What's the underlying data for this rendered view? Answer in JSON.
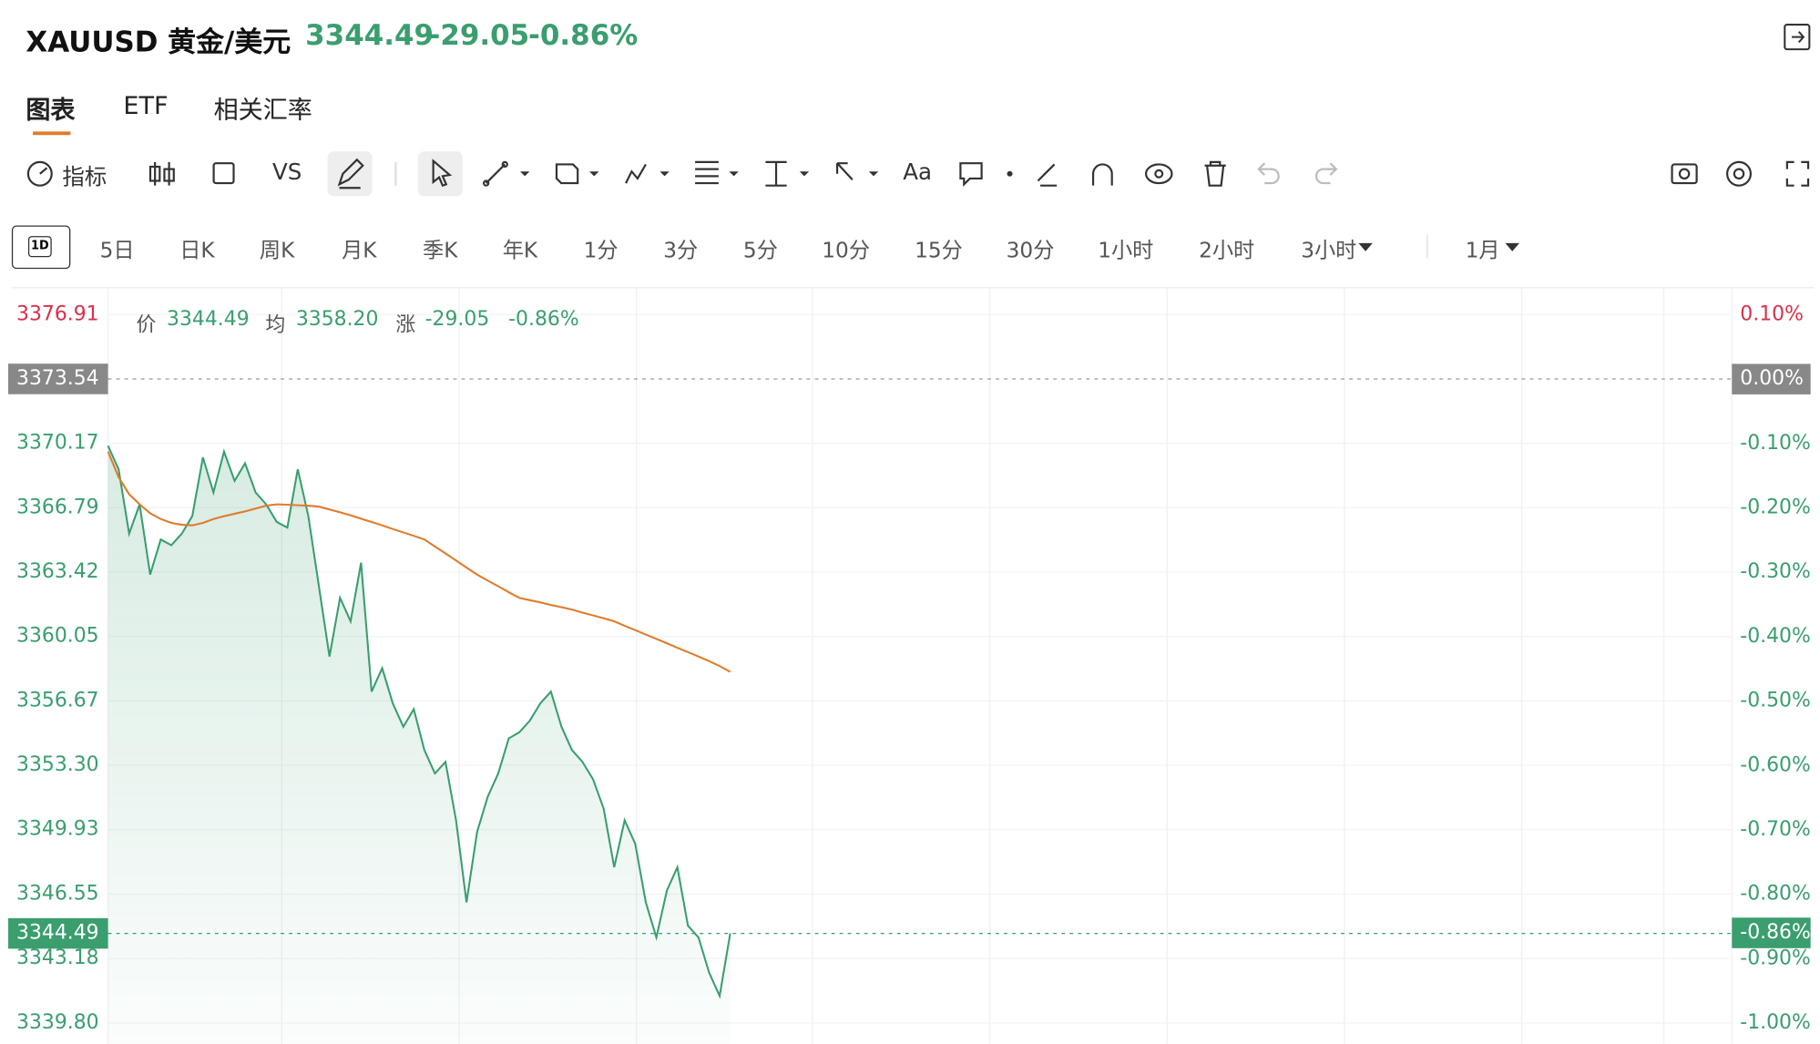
{
  "header": {
    "symbol": "XAUUSD 黄金/美元",
    "price": "3344.49",
    "change": "-29.05",
    "change_pct": "-0.86%"
  },
  "tabs": [
    "图表",
    "ETF",
    "相关汇率"
  ],
  "toolbar": {
    "indicator": "指标",
    "compare": "VS",
    "text": "Aa"
  },
  "periods": [
    "5日",
    "日K",
    "周K",
    "月K",
    "季K",
    "年K",
    "1分",
    "3分",
    "5分",
    "10分",
    "15分",
    "30分",
    "1小时",
    "2小时",
    "3小时",
    "1月"
  ],
  "period_icon": "1D",
  "info": {
    "price_label": "价",
    "price": "3344.49",
    "avg_label": "均",
    "avg": "3358.20",
    "change_label": "涨",
    "change": "-29.05",
    "change_pct": "-0.86%"
  },
  "chart_data": {
    "type": "line",
    "xlim": [
      0,
      154
    ],
    "ylim": [
      3338.21,
      3378.32
    ],
    "yticks": [
      3376.91,
      3373.54,
      3370.17,
      3366.79,
      3363.42,
      3360.05,
      3356.67,
      {
        "value": 3353.3,
        "label": "3353.30"
      },
      3349.93,
      3346.55,
      3343.18,
      {
        "value": 3339.8,
        "label": "3339.80"
      }
    ],
    "y2lim": [
      -1.047,
      0.142
    ],
    "y2ticks": [
      {
        "value": 0.1,
        "label": "0.10%"
      },
      {
        "value": 0,
        "label": "0.00%"
      },
      {
        "value": -0.1,
        "label": "-0.10%"
      },
      {
        "value": -0.2,
        "label": "-0.20%"
      },
      {
        "value": -0.3,
        "label": "-0.30%"
      },
      {
        "value": -0.4,
        "label": "-0.40%"
      },
      {
        "value": -0.5,
        "label": "-0.50%"
      },
      {
        "value": -0.6,
        "label": "-0.60%"
      },
      {
        "value": -0.7,
        "label": "-0.70%"
      },
      {
        "value": -0.8,
        "label": "-0.80%"
      },
      {
        "value": -0.9,
        "label": "-0.90%"
      },
      {
        "value": -1,
        "label": "-1.00%"
      }
    ],
    "current_price": 3344.49,
    "current_pct": {
      "value": -0.86,
      "label": "-0.86%"
    },
    "grid": true,
    "series": [
      {
        "name": "价",
        "color": "#3a9e6e",
        "values": [
          3370.04,
          3368.81,
          3365.44,
          3366.97,
          3363.29,
          3365.13,
          3364.83,
          3365.44,
          3366.36,
          3369.43,
          3367.59,
          3369.73,
          3368.2,
          3369.12,
          3367.59,
          3366.97,
          3366.05,
          3365.75,
          3368.81,
          3366.36,
          3362.68,
          3359.0,
          3362.07,
          3360.84,
          3363.91,
          3357.16,
          3358.39,
          3356.55,
          3355.32,
          3356.24,
          3354.1,
          3352.87,
          3353.48,
          3350.42,
          3346.12,
          3349.8,
          3351.64,
          3352.87,
          3354.71,
          3355.02,
          3355.63,
          3356.55,
          3357.16,
          3355.32,
          3354.1,
          3353.48,
          3352.56,
          3351.03,
          3347.96,
          3350.42,
          3349.19,
          3346.12,
          3344.28,
          3346.74,
          3347.96,
          3344.9,
          3344.28,
          3342.44,
          3341.22,
          3344.49
        ]
      },
      {
        "name": "均",
        "color": "#e07b2a",
        "values": [
          3369.73,
          3368.4,
          3367.5,
          3366.97,
          3366.5,
          3366.2,
          3366.0,
          3365.9,
          3365.87,
          3366.0,
          3366.2,
          3366.35,
          3366.48,
          3366.6,
          3366.75,
          3366.9,
          3366.97,
          3366.95,
          3366.92,
          3366.9,
          3366.85,
          3366.7,
          3366.55,
          3366.4,
          3366.22,
          3366.05,
          3365.87,
          3365.68,
          3365.5,
          3365.32,
          3365.13,
          3364.76,
          3364.4,
          3364.03,
          3363.66,
          3363.29,
          3362.98,
          3362.68,
          3362.37,
          3362.07,
          3361.95,
          3361.83,
          3361.7,
          3361.58,
          3361.46,
          3361.3,
          3361.15,
          3361.0,
          3360.84,
          3360.61,
          3360.38,
          3360.15,
          3359.92,
          3359.69,
          3359.46,
          3359.23,
          3359.0,
          3358.76,
          3358.5,
          3358.2
        ]
      }
    ]
  }
}
